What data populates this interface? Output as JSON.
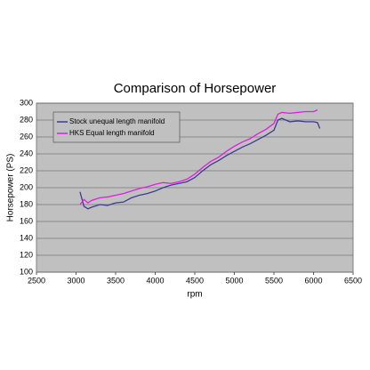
{
  "chart_data": {
    "type": "line",
    "title": "Comparison of Horsepower",
    "x_label": "rpm",
    "y_label": "Horsepower (PS)",
    "x": [
      3050,
      3100,
      3150,
      3200,
      3300,
      3400,
      3500,
      3600,
      3700,
      3800,
      3900,
      4000,
      4100,
      4200,
      4300,
      4400,
      4500,
      4600,
      4700,
      4800,
      4900,
      5000,
      5100,
      5200,
      5300,
      5400,
      5500,
      5550,
      5600,
      5700,
      5800,
      5900,
      6000,
      6050,
      6080
    ],
    "series": [
      {
        "name": "Stock unequal length manifold",
        "color": "#3c3c90",
        "values": [
          195,
          178,
          175,
          177,
          180,
          179,
          182,
          183,
          188,
          191,
          193,
          196,
          200,
          203,
          205,
          207,
          212,
          220,
          227,
          232,
          238,
          243,
          248,
          252,
          257,
          262,
          268,
          280,
          282,
          278,
          279,
          278,
          278,
          277,
          270
        ]
      },
      {
        "name": "HKS Equal length manifold",
        "color": "#e01ee0",
        "values": [
          180,
          186,
          182,
          185,
          188,
          189,
          191,
          193,
          196,
          199,
          201,
          204,
          206,
          205,
          207,
          210,
          216,
          224,
          231,
          236,
          243,
          249,
          254,
          258,
          264,
          269,
          276,
          287,
          289,
          288,
          289,
          290,
          290,
          292,
          null
        ]
      }
    ],
    "xlim": [
      2500,
      6500
    ],
    "xticks": [
      2500,
      3000,
      3500,
      4000,
      4500,
      5000,
      5500,
      6000,
      6500
    ],
    "ylim": [
      100,
      300
    ],
    "yticks": [
      100,
      120,
      140,
      160,
      180,
      200,
      220,
      240,
      260,
      280,
      300
    ],
    "grid": true,
    "legend": "upper left"
  }
}
